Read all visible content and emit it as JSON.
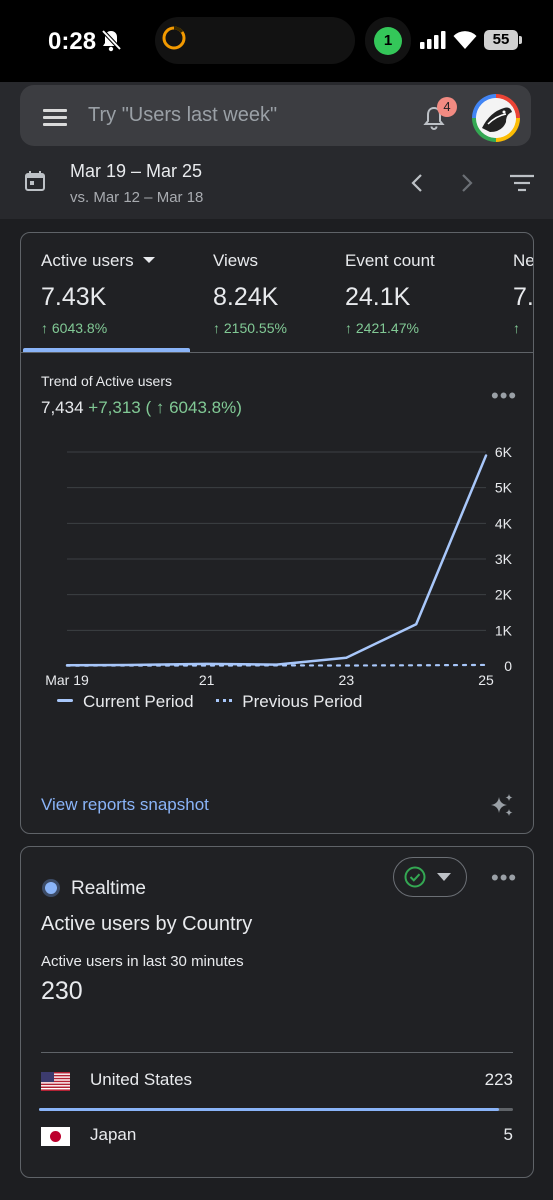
{
  "status_bar": {
    "time": "0:28",
    "call_indicator": "1",
    "battery": "55"
  },
  "header": {
    "search_placeholder": "Try \"Users last week\"",
    "notification_count": "4",
    "date_range": "Mar 19 – Mar 25",
    "compare_range": "vs. Mar 12 – Mar 18"
  },
  "metrics": [
    {
      "label": "Active users",
      "value": "7.43K",
      "change": "↑ 6043.8%"
    },
    {
      "label": "Views",
      "value": "8.24K",
      "change": "↑ 2150.55%"
    },
    {
      "label": "Event count",
      "value": "24.1K",
      "change": "↑ 2421.47%"
    },
    {
      "label": "Ne",
      "value": "7.",
      "change": "↑"
    }
  ],
  "trend": {
    "title": "Trend of Active users",
    "value": "7,434",
    "delta": "+7,313 ( ↑ 6043.8%)"
  },
  "chart_data": {
    "type": "line",
    "x": [
      "Mar 19",
      "20",
      "21",
      "22",
      "23",
      "24",
      "25"
    ],
    "xtick_labels": [
      "Mar 19",
      "21",
      "23",
      "25"
    ],
    "yticks": [
      "0",
      "1K",
      "2K",
      "3K",
      "4K",
      "5K",
      "6K"
    ],
    "ylim": [
      0,
      6000
    ],
    "grid": true,
    "legend_position": "bottom",
    "series": [
      {
        "name": "Current Period",
        "style": "solid",
        "color": "#a8c7fa",
        "values": [
          20,
          30,
          60,
          40,
          230,
          1170,
          5900
        ]
      },
      {
        "name": "Previous Period",
        "style": "dotted",
        "color": "#a8c7fa",
        "values": [
          10,
          15,
          12,
          18,
          14,
          20,
          30
        ]
      }
    ]
  },
  "snapshot_link": "View reports snapshot",
  "realtime": {
    "label": "Realtime",
    "title": "Active users by Country",
    "subtitle": "Active users in last 30 minutes",
    "value": "230",
    "countries": [
      {
        "name": "United States",
        "count": "223",
        "share": 0.97
      },
      {
        "name": "Japan",
        "count": "5"
      }
    ]
  },
  "colors": {
    "accent": "#8ab4f8",
    "positive": "#81c995",
    "card_bg": "#202124",
    "header_bg": "#28292d"
  }
}
